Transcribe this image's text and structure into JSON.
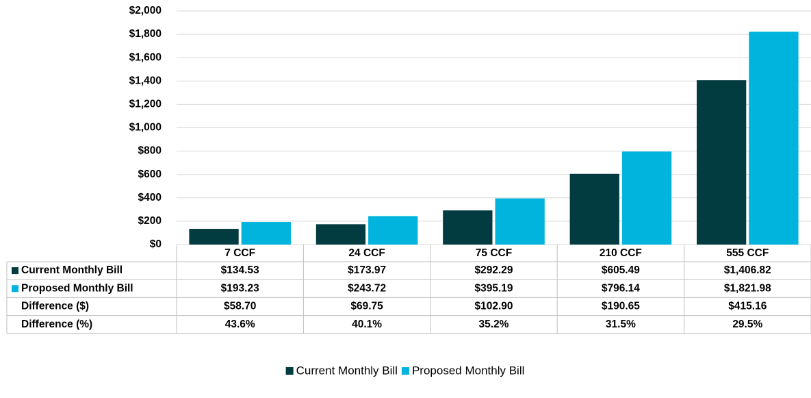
{
  "chart_data": {
    "type": "bar",
    "categories": [
      "7 CCF",
      "24 CCF",
      "75 CCF",
      "210 CCF",
      "555 CCF"
    ],
    "series": [
      {
        "name": "Current Monthly Bill",
        "color": "#023b40",
        "values": [
          134.53,
          173.97,
          292.29,
          605.49,
          1406.82
        ],
        "value_labels": [
          "$134.53",
          "$173.97",
          "$292.29",
          "$605.49",
          "$1,406.82"
        ]
      },
      {
        "name": "Proposed Monthly Bill",
        "color": "#00b4dd",
        "values": [
          193.23,
          243.72,
          395.19,
          796.14,
          1821.98
        ],
        "value_labels": [
          "$193.23",
          "$243.72",
          "$395.19",
          "$796.14",
          "$1,821.98"
        ]
      }
    ],
    "ylim": [
      0,
      2000
    ],
    "yticks": [
      {
        "value": 0,
        "label": "$0"
      },
      {
        "value": 200,
        "label": "$200"
      },
      {
        "value": 400,
        "label": "$400"
      },
      {
        "value": 600,
        "label": "$600"
      },
      {
        "value": 800,
        "label": "$800"
      },
      {
        "value": 1000,
        "label": "$1,000"
      },
      {
        "value": 1200,
        "label": "$1,200"
      },
      {
        "value": 1400,
        "label": "$1,400"
      },
      {
        "value": 1600,
        "label": "$1,600"
      },
      {
        "value": 1800,
        "label": "$1,800"
      },
      {
        "value": 2000,
        "label": "$2,000"
      }
    ],
    "grid": true,
    "legend": "bottom",
    "data_table_rows": [
      {
        "label": "Difference ($)",
        "cells": [
          "$58.70",
          "$69.75",
          "$102.90",
          "$190.65",
          "$415.16"
        ]
      },
      {
        "label": "Difference (%)",
        "cells": [
          "43.6%",
          "40.1%",
          "35.2%",
          "31.5%",
          "29.5%"
        ]
      }
    ]
  }
}
